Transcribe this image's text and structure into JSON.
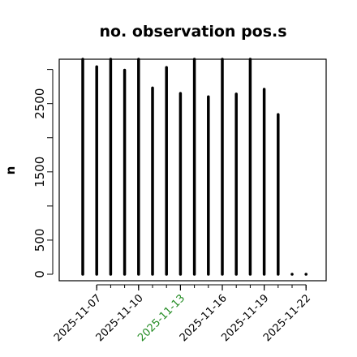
{
  "chart_data": {
    "type": "bar",
    "title": "no. observation pos.s",
    "xlabel": "",
    "ylabel": "n",
    "ylim": [
      0,
      3150
    ],
    "yticks": [
      0,
      500,
      1500,
      2500
    ],
    "xticks": [
      {
        "label": "2025-11-07",
        "color": "#000000"
      },
      {
        "label": "2025-11-10",
        "color": "#000000"
      },
      {
        "label": "2025-11-13",
        "color": "#228B22"
      },
      {
        "label": "2025-11-16",
        "color": "#000000"
      },
      {
        "label": "2025-11-19",
        "color": "#000000"
      },
      {
        "label": "2025-11-22",
        "color": "#000000"
      }
    ],
    "dates": [
      "2025-11-06",
      "2025-11-07",
      "2025-11-08",
      "2025-11-09",
      "2025-11-10",
      "2025-11-11",
      "2025-11-12",
      "2025-11-13",
      "2025-11-14",
      "2025-11-15",
      "2025-11-16",
      "2025-11-17",
      "2025-11-18",
      "2025-11-19",
      "2025-11-20",
      "2025-11-21",
      "2025-11-22"
    ],
    "values": [
      3150,
      3040,
      3150,
      2990,
      3150,
      2730,
      3030,
      2650,
      3150,
      2600,
      3150,
      2640,
      3150,
      2710,
      2340,
      0,
      0
    ],
    "grid": false,
    "bar_color": "#000000"
  }
}
